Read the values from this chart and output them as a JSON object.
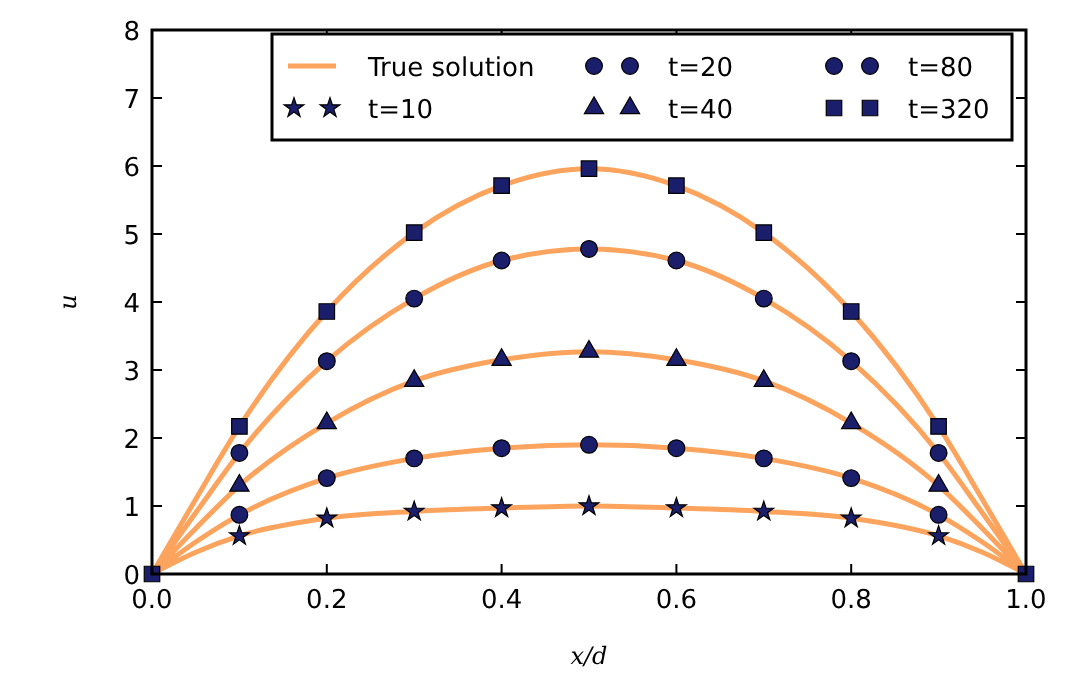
{
  "chart_data": {
    "type": "line",
    "xlabel": "x/d",
    "ylabel": "u",
    "xlim": [
      0,
      1
    ],
    "ylim": [
      0,
      8
    ],
    "xticks": [
      {
        "value": 0,
        "label": "0.0"
      },
      {
        "value": 0.2,
        "label": "0.2"
      },
      {
        "value": 0.4,
        "label": "0.4"
      },
      {
        "value": 0.6,
        "label": "0.6"
      },
      {
        "value": 0.8,
        "label": "0.8"
      },
      {
        "value": 1,
        "label": "1.0"
      }
    ],
    "yticks": [
      0,
      1,
      2,
      3,
      4,
      5,
      6,
      7,
      8
    ],
    "legend": "top right",
    "series": [
      {
        "name": "True solution",
        "color": "#fca35d",
        "line_style": "solid",
        "marker": "none",
        "x": [
          0,
          0.05,
          0.1,
          0.2,
          0.3,
          0.4,
          0.5,
          0.6,
          0.7,
          0.8,
          0.9,
          0.95,
          1,
          null,
          0,
          0.05,
          0.1,
          0.2,
          0.3,
          0.4,
          0.5,
          0.6,
          0.7,
          0.8,
          0.9,
          0.95,
          1,
          null,
          0,
          0.05,
          0.1,
          0.2,
          0.3,
          0.4,
          0.5,
          0.6,
          0.7,
          0.8,
          0.9,
          0.95,
          1,
          null,
          0,
          0.05,
          0.1,
          0.2,
          0.3,
          0.4,
          0.5,
          0.6,
          0.7,
          0.8,
          0.9,
          0.95,
          1,
          null,
          0,
          0.05,
          0.1,
          0.2,
          0.3,
          0.4,
          0.5,
          0.6,
          0.7,
          0.8,
          0.9,
          0.95,
          1
        ],
        "values": [
          0,
          0.32,
          0.56,
          0.82,
          0.92,
          0.97,
          1.0,
          0.97,
          0.92,
          0.82,
          0.56,
          0.32,
          0,
          null,
          0,
          0.47,
          0.87,
          1.41,
          1.7,
          1.85,
          1.9,
          1.85,
          1.7,
          1.41,
          0.87,
          0.47,
          0,
          null,
          0,
          0.67,
          1.3,
          2.22,
          2.84,
          3.15,
          3.27,
          3.15,
          2.84,
          2.22,
          1.3,
          0.67,
          0,
          null,
          0,
          0.9,
          1.78,
          3.13,
          4.05,
          4.61,
          4.78,
          4.61,
          4.05,
          3.13,
          1.78,
          0.9,
          0,
          null,
          0,
          1.1,
          2.17,
          3.86,
          5.02,
          5.71,
          5.96,
          5.71,
          5.02,
          3.86,
          2.17,
          1.1,
          0
        ]
      },
      {
        "type": "scatter",
        "name": "t=10",
        "color": "#1b1f6b",
        "marker": "star",
        "x": [
          0.1,
          0.2,
          0.3,
          0.4,
          0.5,
          0.6,
          0.7,
          0.8,
          0.9
        ],
        "values": [
          0.56,
          0.82,
          0.92,
          0.97,
          1.0,
          0.97,
          0.92,
          0.82,
          0.56
        ]
      },
      {
        "type": "scatter",
        "name": "t=20",
        "color": "#1b1f6b",
        "marker": "circle",
        "x": [
          0.1,
          0.2,
          0.3,
          0.4,
          0.5,
          0.6,
          0.7,
          0.8,
          0.9
        ],
        "values": [
          0.87,
          1.41,
          1.7,
          1.85,
          1.9,
          1.85,
          1.7,
          1.41,
          0.87
        ]
      },
      {
        "type": "scatter",
        "name": "t=40",
        "color": "#1b1f6b",
        "marker": "triangle",
        "x": [
          0.1,
          0.2,
          0.3,
          0.4,
          0.5,
          0.6,
          0.7,
          0.8,
          0.9
        ],
        "values": [
          1.3,
          2.22,
          2.84,
          3.15,
          3.27,
          3.15,
          2.84,
          2.22,
          1.3
        ]
      },
      {
        "type": "scatter",
        "name": "t=80",
        "color": "#1b1f6b",
        "marker": "circle",
        "x": [
          0.1,
          0.2,
          0.3,
          0.4,
          0.5,
          0.6,
          0.7,
          0.8,
          0.9
        ],
        "values": [
          1.78,
          3.13,
          4.05,
          4.61,
          4.78,
          4.61,
          4.05,
          3.13,
          1.78
        ]
      },
      {
        "type": "scatter",
        "name": "t=320",
        "color": "#1b1f6b",
        "marker": "square",
        "x": [
          0,
          0.1,
          0.2,
          0.3,
          0.4,
          0.5,
          0.6,
          0.7,
          0.8,
          0.9,
          1
        ],
        "values": [
          0,
          2.17,
          3.86,
          5.02,
          5.71,
          5.96,
          5.71,
          5.02,
          3.86,
          2.17,
          0
        ]
      }
    ]
  }
}
